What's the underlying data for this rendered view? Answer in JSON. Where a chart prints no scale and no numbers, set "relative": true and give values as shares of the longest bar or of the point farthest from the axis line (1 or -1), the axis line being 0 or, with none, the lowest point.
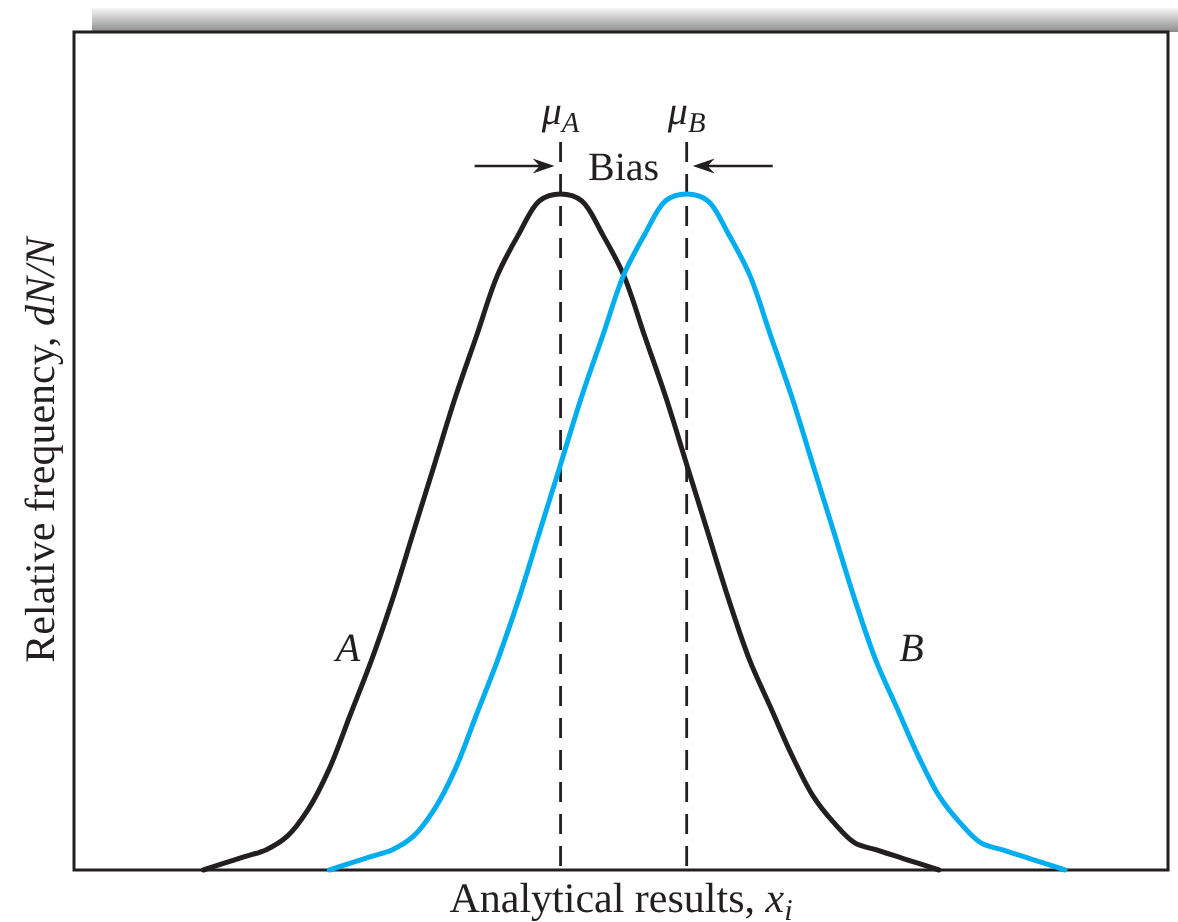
{
  "chart_data": {
    "type": "line",
    "relative": true,
    "xlabel": "Analytical results, x$_{i}$",
    "ylabel": "Relative frequency, dN/N",
    "categories": [
      null,
      null,
      null,
      null,
      null,
      null,
      null,
      null,
      null,
      null,
      null,
      null,
      null,
      null,
      null,
      null,
      null,
      "μ$_{A}$",
      null,
      null,
      null,
      null,
      null,
      "μ$_{B}$",
      null,
      null,
      null,
      null,
      null,
      null,
      null,
      null,
      null,
      null,
      null,
      null,
      null,
      null,
      null,
      null,
      null,
      null
    ],
    "tick_labels": "x",
    "series": [
      {
        "name": "A",
        "color": "#231f20",
        "values": [
          0,
          0.01,
          0.02,
          0.03,
          0.05,
          0.09,
          0.15,
          0.23,
          0.31,
          0.4,
          0.5,
          0.6,
          0.7,
          0.79,
          0.88,
          0.94,
          0.99,
          1,
          0.99,
          0.94,
          0.88,
          0.79,
          0.7,
          0.6,
          0.5,
          0.4,
          0.31,
          0.24,
          0.17,
          0.11,
          0.07,
          0.04,
          0.03,
          0.02,
          0.01,
          0,
          null,
          null,
          null,
          null,
          null,
          null
        ]
      },
      {
        "name": "B",
        "color": "#00aeef",
        "values": [
          null,
          null,
          null,
          null,
          null,
          null,
          0,
          0.01,
          0.02,
          0.03,
          0.05,
          0.09,
          0.15,
          0.23,
          0.31,
          0.4,
          0.5,
          0.6,
          0.7,
          0.79,
          0.88,
          0.94,
          0.99,
          1,
          0.99,
          0.94,
          0.88,
          0.79,
          0.7,
          0.6,
          0.5,
          0.4,
          0.31,
          0.24,
          0.17,
          0.11,
          0.07,
          0.04,
          0.03,
          0.02,
          0.01,
          0
        ]
      }
    ],
    "ref_lines": [
      {
        "axis": "x",
        "value": "μ$_{A}$",
        "line_style": "dashed",
        "color": "#231f20"
      },
      {
        "axis": "x",
        "value": "μ$_{B}$",
        "line_style": "dashed",
        "color": "#231f20"
      }
    ],
    "annotations": [
      "Bias"
    ]
  }
}
